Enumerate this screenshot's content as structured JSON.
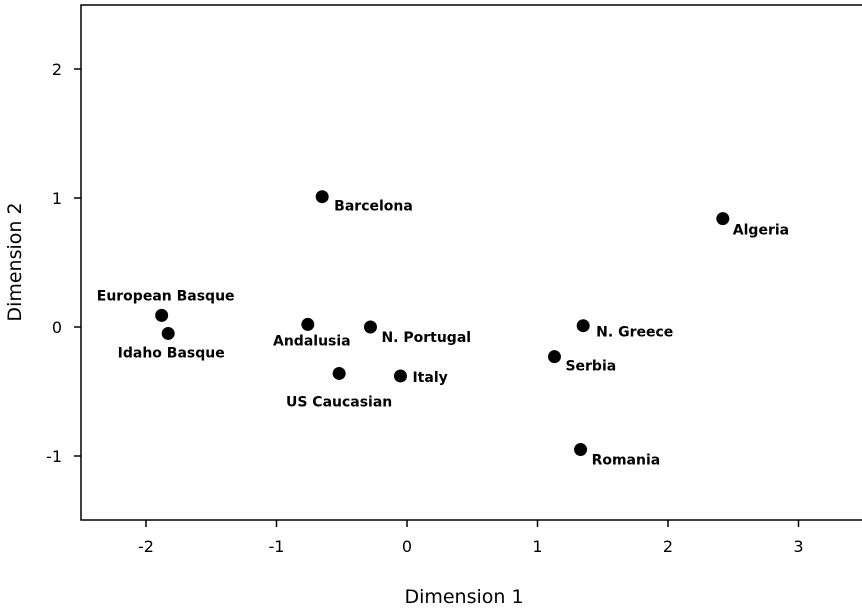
{
  "chart_data": {
    "type": "scatter",
    "xlabel": "Dimension 1",
    "ylabel": "Dimension 2",
    "xlim": [
      -2.5,
      3.5
    ],
    "ylim": [
      -1.5,
      2.5
    ],
    "xticks": [
      -2,
      -1,
      0,
      1,
      2,
      3
    ],
    "yticks": [
      -1,
      0,
      1,
      2
    ],
    "xtick_labels": [
      "-2",
      "-1",
      "0",
      "1",
      "2",
      "3"
    ],
    "ytick_labels": [
      "-1",
      "0",
      "1",
      "2"
    ],
    "grid": false,
    "points": [
      {
        "label": "Barcelona",
        "x": -0.65,
        "y": 1.01
      },
      {
        "label": "Algeria",
        "x": 2.42,
        "y": 0.84
      },
      {
        "label": "European Basque",
        "x": -1.88,
        "y": 0.09
      },
      {
        "label": "Idaho Basque",
        "x": -1.83,
        "y": -0.05
      },
      {
        "label": "Andalusia",
        "x": -0.76,
        "y": 0.02
      },
      {
        "label": "N. Portugal",
        "x": -0.28,
        "y": 0.0
      },
      {
        "label": "N. Greece",
        "x": 1.35,
        "y": 0.01
      },
      {
        "label": "Serbia",
        "x": 1.13,
        "y": -0.23
      },
      {
        "label": "US Caucasian",
        "x": -0.52,
        "y": -0.36
      },
      {
        "label": "Italy",
        "x": -0.05,
        "y": -0.38
      },
      {
        "label": "Romania",
        "x": 1.33,
        "y": -0.95
      }
    ]
  }
}
